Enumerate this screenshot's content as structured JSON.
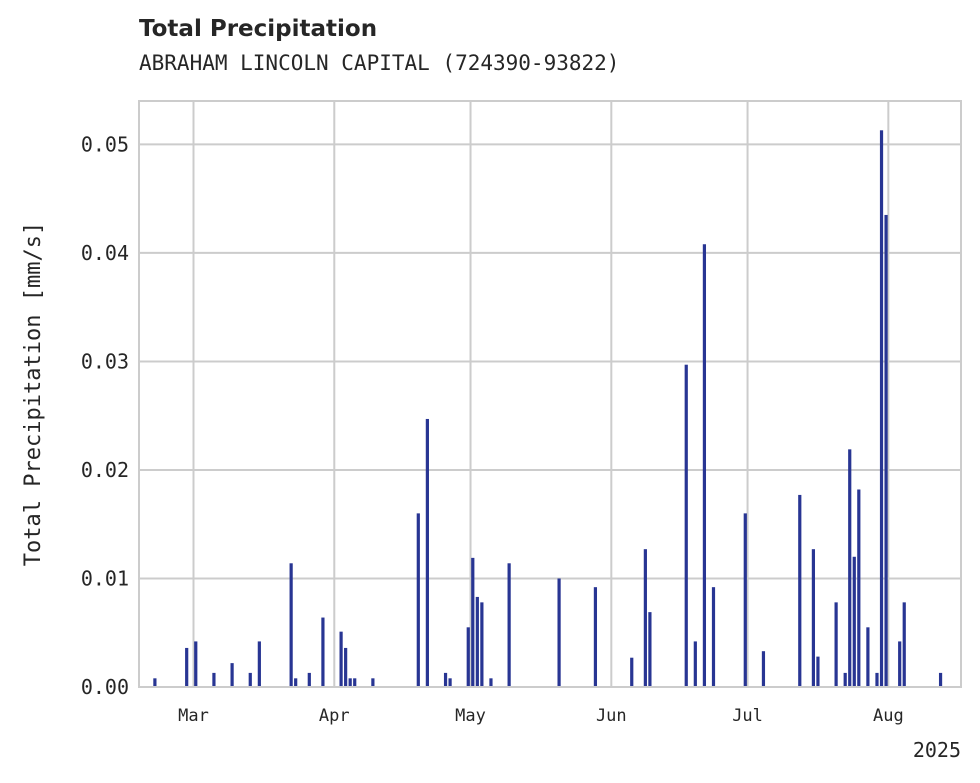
{
  "header": {
    "title": "Total Precipitation",
    "subtitle": "ABRAHAM LINCOLN CAPITAL (724390-93822)"
  },
  "chart_data": {
    "type": "bar",
    "title": "Total Precipitation",
    "subtitle": "ABRAHAM LINCOLN CAPITAL (724390-93822)",
    "ylabel": "Total Precipitation [mm/s]",
    "xlabel": "",
    "x_range": [
      "2025-02-17",
      "2025-08-17"
    ],
    "ylim": [
      0,
      0.054
    ],
    "yticks": [
      0,
      0.01,
      0.02,
      0.03,
      0.04,
      0.05
    ],
    "ytick_labels": [
      "0.00",
      "0.01",
      "0.02",
      "0.03",
      "0.04",
      "0.05"
    ],
    "xticks": [
      "2025-03-01",
      "2025-04-01",
      "2025-05-01",
      "2025-06-01",
      "2025-07-01",
      "2025-08-01"
    ],
    "xtick_labels": [
      "Mar",
      "Apr",
      "May",
      "Jun",
      "Jul",
      "Aug"
    ],
    "x_offset_label": "2025",
    "grid": true,
    "bar_color": "#283593",
    "x": [
      "2025-02-20",
      "2025-02-27",
      "2025-03-01",
      "2025-03-05",
      "2025-03-09",
      "2025-03-13",
      "2025-03-15",
      "2025-03-22",
      "2025-03-23",
      "2025-03-26",
      "2025-03-29",
      "2025-04-02",
      "2025-04-03",
      "2025-04-04",
      "2025-04-05",
      "2025-04-09",
      "2025-04-19",
      "2025-04-21",
      "2025-04-25",
      "2025-04-26",
      "2025-04-30",
      "2025-05-01",
      "2025-05-02",
      "2025-05-03",
      "2025-05-05",
      "2025-05-09",
      "2025-05-20",
      "2025-05-28",
      "2025-06-05",
      "2025-06-08",
      "2025-06-09",
      "2025-06-17",
      "2025-06-19",
      "2025-06-21",
      "2025-06-23",
      "2025-06-30",
      "2025-07-04",
      "2025-07-12",
      "2025-07-15",
      "2025-07-16",
      "2025-07-20",
      "2025-07-22",
      "2025-07-23",
      "2025-07-24",
      "2025-07-25",
      "2025-07-27",
      "2025-07-29",
      "2025-07-30",
      "2025-07-31",
      "2025-08-03",
      "2025-08-04",
      "2025-08-12"
    ],
    "values": [
      0.0008,
      0.0036,
      0.0042,
      0.0013,
      0.0022,
      0.0013,
      0.0042,
      0.0114,
      0.0008,
      0.0013,
      0.0064,
      0.0051,
      0.0036,
      0.0008,
      0.0008,
      0.0008,
      0.016,
      0.0247,
      0.0013,
      0.0008,
      0.0055,
      0.0119,
      0.0083,
      0.0078,
      0.0008,
      0.0114,
      0.01,
      0.0092,
      0.0027,
      0.0127,
      0.0069,
      0.0297,
      0.0042,
      0.0408,
      0.0092,
      0.016,
      0.0033,
      0.0177,
      0.0127,
      0.0028,
      0.0078,
      0.0013,
      0.0219,
      0.012,
      0.0182,
      0.0055,
      0.0013,
      0.0513,
      0.0435,
      0.0042,
      0.0078,
      0.0013
    ]
  }
}
